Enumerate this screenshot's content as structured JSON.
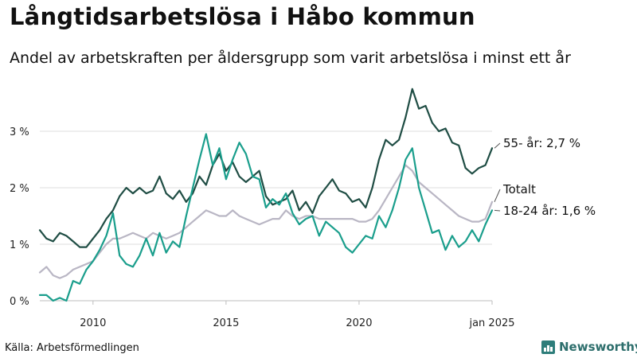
{
  "title": "Långtidsarbetslösa i Håbo kommun",
  "subtitle": "Andel av arbetskraften per åldersgrupp som varit arbetslösa i minst ett år",
  "source": "Källa: Arbetsförmedlingen",
  "logo": {
    "text": "Newsworthy",
    "icon": "bar-chart-icon",
    "color": "#2d7d7a"
  },
  "chart_data": {
    "type": "line",
    "x_unit": "year",
    "xlim": [
      2008.0,
      2025.0
    ],
    "ylim": [
      0,
      3.8
    ],
    "y_ticks": [
      {
        "value": 0,
        "label": "0 %"
      },
      {
        "value": 1,
        "label": "1 %"
      },
      {
        "value": 2,
        "label": "2 %"
      },
      {
        "value": 3,
        "label": "3 %"
      }
    ],
    "x_ticks": [
      {
        "value": 2010,
        "label": "2010"
      },
      {
        "value": 2015,
        "label": "2015"
      },
      {
        "value": 2020,
        "label": "2020"
      },
      {
        "value": 2025,
        "label": "jan 2025"
      }
    ],
    "grid": "horizontal",
    "series": [
      {
        "name": "Totalt",
        "label": "Totalt",
        "color": "#b9b6c4",
        "points": [
          [
            2008.0,
            0.5
          ],
          [
            2008.25,
            0.6
          ],
          [
            2008.5,
            0.45
          ],
          [
            2008.75,
            0.4
          ],
          [
            2009.0,
            0.45
          ],
          [
            2009.25,
            0.55
          ],
          [
            2009.5,
            0.6
          ],
          [
            2009.75,
            0.65
          ],
          [
            2010.0,
            0.7
          ],
          [
            2010.25,
            0.85
          ],
          [
            2010.5,
            1.0
          ],
          [
            2010.75,
            1.1
          ],
          [
            2011.0,
            1.1
          ],
          [
            2011.25,
            1.15
          ],
          [
            2011.5,
            1.2
          ],
          [
            2011.75,
            1.15
          ],
          [
            2012.0,
            1.1
          ],
          [
            2012.25,
            1.2
          ],
          [
            2012.5,
            1.15
          ],
          [
            2012.75,
            1.1
          ],
          [
            2013.0,
            1.15
          ],
          [
            2013.25,
            1.2
          ],
          [
            2013.5,
            1.3
          ],
          [
            2013.75,
            1.4
          ],
          [
            2014.0,
            1.5
          ],
          [
            2014.25,
            1.6
          ],
          [
            2014.5,
            1.55
          ],
          [
            2014.75,
            1.5
          ],
          [
            2015.0,
            1.5
          ],
          [
            2015.25,
            1.6
          ],
          [
            2015.5,
            1.5
          ],
          [
            2015.75,
            1.45
          ],
          [
            2016.0,
            1.4
          ],
          [
            2016.25,
            1.35
          ],
          [
            2016.5,
            1.4
          ],
          [
            2016.75,
            1.45
          ],
          [
            2017.0,
            1.45
          ],
          [
            2017.25,
            1.6
          ],
          [
            2017.5,
            1.5
          ],
          [
            2017.75,
            1.45
          ],
          [
            2018.0,
            1.5
          ],
          [
            2018.25,
            1.5
          ],
          [
            2018.5,
            1.45
          ],
          [
            2018.75,
            1.45
          ],
          [
            2019.0,
            1.45
          ],
          [
            2019.25,
            1.45
          ],
          [
            2019.5,
            1.45
          ],
          [
            2019.75,
            1.45
          ],
          [
            2020.0,
            1.4
          ],
          [
            2020.25,
            1.4
          ],
          [
            2020.5,
            1.45
          ],
          [
            2020.75,
            1.6
          ],
          [
            2021.0,
            1.8
          ],
          [
            2021.25,
            2.0
          ],
          [
            2021.5,
            2.2
          ],
          [
            2021.75,
            2.4
          ],
          [
            2022.0,
            2.3
          ],
          [
            2022.25,
            2.1
          ],
          [
            2022.5,
            2.0
          ],
          [
            2022.75,
            1.9
          ],
          [
            2023.0,
            1.8
          ],
          [
            2023.25,
            1.7
          ],
          [
            2023.5,
            1.6
          ],
          [
            2023.75,
            1.5
          ],
          [
            2024.0,
            1.45
          ],
          [
            2024.25,
            1.4
          ],
          [
            2024.5,
            1.4
          ],
          [
            2024.75,
            1.45
          ],
          [
            2025.0,
            1.75
          ]
        ]
      },
      {
        "name": "55- år",
        "label": "55- år: 2,7 %",
        "color": "#1f4d44",
        "points": [
          [
            2008.0,
            1.25
          ],
          [
            2008.25,
            1.1
          ],
          [
            2008.5,
            1.05
          ],
          [
            2008.75,
            1.2
          ],
          [
            2009.0,
            1.15
          ],
          [
            2009.25,
            1.05
          ],
          [
            2009.5,
            0.95
          ],
          [
            2009.75,
            0.95
          ],
          [
            2010.0,
            1.1
          ],
          [
            2010.25,
            1.25
          ],
          [
            2010.5,
            1.45
          ],
          [
            2010.75,
            1.6
          ],
          [
            2011.0,
            1.85
          ],
          [
            2011.25,
            2.0
          ],
          [
            2011.5,
            1.9
          ],
          [
            2011.75,
            2.0
          ],
          [
            2012.0,
            1.9
          ],
          [
            2012.25,
            1.95
          ],
          [
            2012.5,
            2.2
          ],
          [
            2012.75,
            1.9
          ],
          [
            2013.0,
            1.8
          ],
          [
            2013.25,
            1.95
          ],
          [
            2013.5,
            1.75
          ],
          [
            2013.75,
            1.9
          ],
          [
            2014.0,
            2.2
          ],
          [
            2014.25,
            2.05
          ],
          [
            2014.5,
            2.4
          ],
          [
            2014.75,
            2.6
          ],
          [
            2015.0,
            2.3
          ],
          [
            2015.25,
            2.45
          ],
          [
            2015.5,
            2.2
          ],
          [
            2015.75,
            2.1
          ],
          [
            2016.0,
            2.2
          ],
          [
            2016.25,
            2.3
          ],
          [
            2016.5,
            1.85
          ],
          [
            2016.75,
            1.7
          ],
          [
            2017.0,
            1.75
          ],
          [
            2017.25,
            1.8
          ],
          [
            2017.5,
            1.95
          ],
          [
            2017.75,
            1.6
          ],
          [
            2018.0,
            1.75
          ],
          [
            2018.25,
            1.55
          ],
          [
            2018.5,
            1.85
          ],
          [
            2018.75,
            2.0
          ],
          [
            2019.0,
            2.15
          ],
          [
            2019.25,
            1.95
          ],
          [
            2019.5,
            1.9
          ],
          [
            2019.75,
            1.75
          ],
          [
            2020.0,
            1.8
          ],
          [
            2020.25,
            1.65
          ],
          [
            2020.5,
            2.0
          ],
          [
            2020.75,
            2.5
          ],
          [
            2021.0,
            2.85
          ],
          [
            2021.25,
            2.75
          ],
          [
            2021.5,
            2.85
          ],
          [
            2021.75,
            3.25
          ],
          [
            2022.0,
            3.75
          ],
          [
            2022.25,
            3.4
          ],
          [
            2022.5,
            3.45
          ],
          [
            2022.75,
            3.15
          ],
          [
            2023.0,
            3.0
          ],
          [
            2023.25,
            3.05
          ],
          [
            2023.5,
            2.8
          ],
          [
            2023.75,
            2.75
          ],
          [
            2024.0,
            2.35
          ],
          [
            2024.25,
            2.25
          ],
          [
            2024.5,
            2.35
          ],
          [
            2024.75,
            2.4
          ],
          [
            2025.0,
            2.7
          ]
        ]
      },
      {
        "name": "18-24 år",
        "label": "18-24 år: 1,6 %",
        "color": "#1a9e8c",
        "points": [
          [
            2008.0,
            0.1
          ],
          [
            2008.25,
            0.1
          ],
          [
            2008.5,
            0.0
          ],
          [
            2008.75,
            0.05
          ],
          [
            2009.0,
            0.0
          ],
          [
            2009.25,
            0.35
          ],
          [
            2009.5,
            0.3
          ],
          [
            2009.75,
            0.55
          ],
          [
            2010.0,
            0.7
          ],
          [
            2010.25,
            0.9
          ],
          [
            2010.5,
            1.15
          ],
          [
            2010.75,
            1.55
          ],
          [
            2011.0,
            0.8
          ],
          [
            2011.25,
            0.65
          ],
          [
            2011.5,
            0.6
          ],
          [
            2011.75,
            0.8
          ],
          [
            2012.0,
            1.1
          ],
          [
            2012.25,
            0.8
          ],
          [
            2012.5,
            1.2
          ],
          [
            2012.75,
            0.85
          ],
          [
            2013.0,
            1.05
          ],
          [
            2013.25,
            0.95
          ],
          [
            2013.5,
            1.5
          ],
          [
            2013.75,
            2.0
          ],
          [
            2014.0,
            2.5
          ],
          [
            2014.25,
            2.95
          ],
          [
            2014.5,
            2.4
          ],
          [
            2014.75,
            2.7
          ],
          [
            2015.0,
            2.15
          ],
          [
            2015.25,
            2.5
          ],
          [
            2015.5,
            2.8
          ],
          [
            2015.75,
            2.6
          ],
          [
            2016.0,
            2.2
          ],
          [
            2016.25,
            2.15
          ],
          [
            2016.5,
            1.65
          ],
          [
            2016.75,
            1.8
          ],
          [
            2017.0,
            1.7
          ],
          [
            2017.25,
            1.9
          ],
          [
            2017.5,
            1.55
          ],
          [
            2017.75,
            1.35
          ],
          [
            2018.0,
            1.45
          ],
          [
            2018.25,
            1.5
          ],
          [
            2018.5,
            1.15
          ],
          [
            2018.75,
            1.4
          ],
          [
            2019.0,
            1.3
          ],
          [
            2019.25,
            1.2
          ],
          [
            2019.5,
            0.95
          ],
          [
            2019.75,
            0.85
          ],
          [
            2020.0,
            1.0
          ],
          [
            2020.25,
            1.15
          ],
          [
            2020.5,
            1.1
          ],
          [
            2020.75,
            1.5
          ],
          [
            2021.0,
            1.3
          ],
          [
            2021.25,
            1.6
          ],
          [
            2021.5,
            2.0
          ],
          [
            2021.75,
            2.5
          ],
          [
            2022.0,
            2.7
          ],
          [
            2022.25,
            2.0
          ],
          [
            2022.5,
            1.6
          ],
          [
            2022.75,
            1.2
          ],
          [
            2023.0,
            1.25
          ],
          [
            2023.25,
            0.9
          ],
          [
            2023.5,
            1.15
          ],
          [
            2023.75,
            0.95
          ],
          [
            2024.0,
            1.05
          ],
          [
            2024.25,
            1.25
          ],
          [
            2024.5,
            1.05
          ],
          [
            2024.75,
            1.35
          ],
          [
            2025.0,
            1.6
          ]
        ]
      }
    ]
  }
}
